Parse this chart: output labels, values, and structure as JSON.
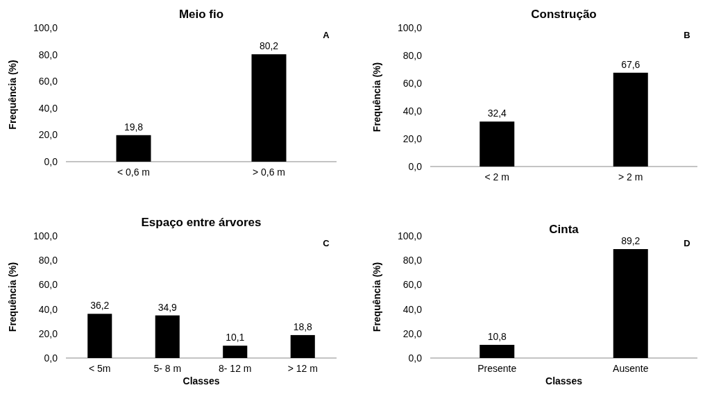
{
  "chart_data": [
    {
      "type": "bar",
      "title": "Meio fio",
      "ylabel": "Frequência (%)",
      "categories": [
        "< 0,6 m",
        "> 0,6 m"
      ],
      "values": [
        19.8,
        80.2
      ],
      "value_labels": [
        "19,8",
        "80,2"
      ],
      "color": "#000000",
      "ylim": [
        0,
        100
      ],
      "yticks": [
        {
          "value": 0,
          "label": "0,0"
        },
        {
          "value": 20,
          "label": "20,0"
        },
        {
          "value": 40,
          "label": "40,0"
        },
        {
          "value": 60,
          "label": "60,0"
        },
        {
          "value": 80,
          "label": "80,0"
        },
        {
          "value": 100,
          "label": "100,0"
        }
      ],
      "annotations": [
        "A"
      ]
    },
    {
      "type": "bar",
      "title": "Construção",
      "ylabel": "Frequência (%)",
      "categories": [
        "< 2 m",
        "> 2 m"
      ],
      "values": [
        32.4,
        67.6
      ],
      "value_labels": [
        "32,4",
        "67,6"
      ],
      "color": "#000000",
      "ylim": [
        0,
        100
      ],
      "yticks": [
        {
          "value": 0,
          "label": "0,0"
        },
        {
          "value": 20,
          "label": "20,0"
        },
        {
          "value": 40,
          "label": "40,0"
        },
        {
          "value": 60,
          "label": "60,0"
        },
        {
          "value": 80,
          "label": "80,0"
        },
        {
          "value": 100,
          "label": "100,0"
        }
      ],
      "annotations": [
        "B"
      ]
    },
    {
      "type": "bar",
      "title": "Espaço entre árvores",
      "xlabel": "Classes",
      "ylabel": "Frequência (%)",
      "categories": [
        "< 5m",
        "5- 8 m",
        "8- 12 m",
        "> 12 m"
      ],
      "values": [
        36.2,
        34.9,
        10.1,
        18.8
      ],
      "value_labels": [
        "36,2",
        "34,9",
        "10,1",
        "18,8"
      ],
      "color": "#000000",
      "ylim": [
        0,
        100
      ],
      "yticks": [
        {
          "value": 0,
          "label": "0,0"
        },
        {
          "value": 20,
          "label": "20,0"
        },
        {
          "value": 40,
          "label": "40,0"
        },
        {
          "value": 60,
          "label": "60,0"
        },
        {
          "value": 80,
          "label": "80,0"
        },
        {
          "value": 100,
          "label": "100,0"
        }
      ],
      "annotations": [
        "C"
      ]
    },
    {
      "type": "bar",
      "title": "Cinta",
      "xlabel": "Classes",
      "ylabel": "Frequência (%)",
      "categories": [
        "Presente",
        "Ausente"
      ],
      "values": [
        10.8,
        89.2
      ],
      "value_labels": [
        "10,8",
        "89,2"
      ],
      "color": "#000000",
      "ylim": [
        0,
        100
      ],
      "yticks": [
        {
          "value": 0,
          "label": "0,0"
        },
        {
          "value": 20,
          "label": "20,0"
        },
        {
          "value": 40,
          "label": "40,0"
        },
        {
          "value": 60,
          "label": "60,0"
        },
        {
          "value": 80,
          "label": "80,0"
        },
        {
          "value": 100,
          "label": "100,0"
        }
      ],
      "annotations": [
        "D"
      ]
    }
  ]
}
